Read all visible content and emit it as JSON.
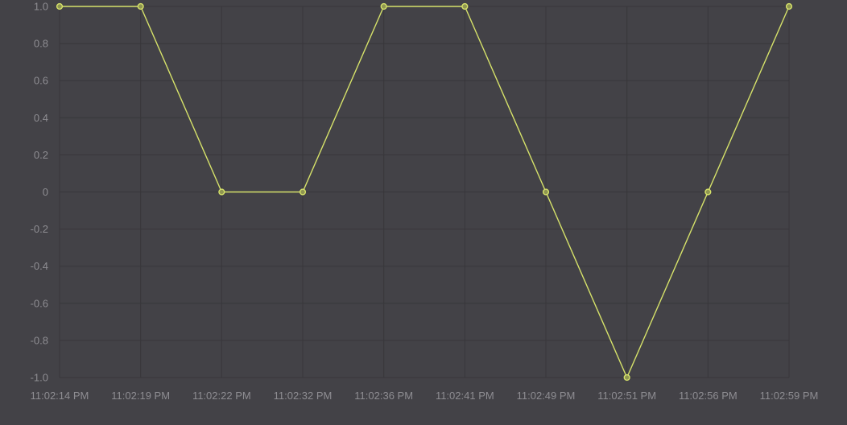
{
  "chart_data": {
    "type": "line",
    "title": "",
    "xlabel": "",
    "ylabel": "",
    "x": [
      "11:02:14 PM",
      "11:02:19 PM",
      "11:02:22 PM",
      "11:02:32 PM",
      "11:02:36 PM",
      "11:02:41 PM",
      "11:02:49 PM",
      "11:02:51 PM",
      "11:02:56 PM",
      "11:02:59 PM"
    ],
    "series": [
      {
        "values": [
          1,
          1,
          0,
          0,
          1,
          1,
          0,
          -1,
          0,
          1
        ]
      }
    ],
    "y_ticks": [
      "1.0",
      "0.8",
      "0.6",
      "0.4",
      "0.2",
      "0",
      "-0.2",
      "-0.4",
      "-0.6",
      "-0.8",
      "-1.0"
    ],
    "ylim": [
      -1,
      1
    ],
    "grid": true,
    "legend": "none",
    "colors": {
      "background": "#434247",
      "grid": "#38373b",
      "tick_text": "#8e8d92",
      "line": "#d6e26a",
      "point_fill": "#8f9651"
    }
  }
}
